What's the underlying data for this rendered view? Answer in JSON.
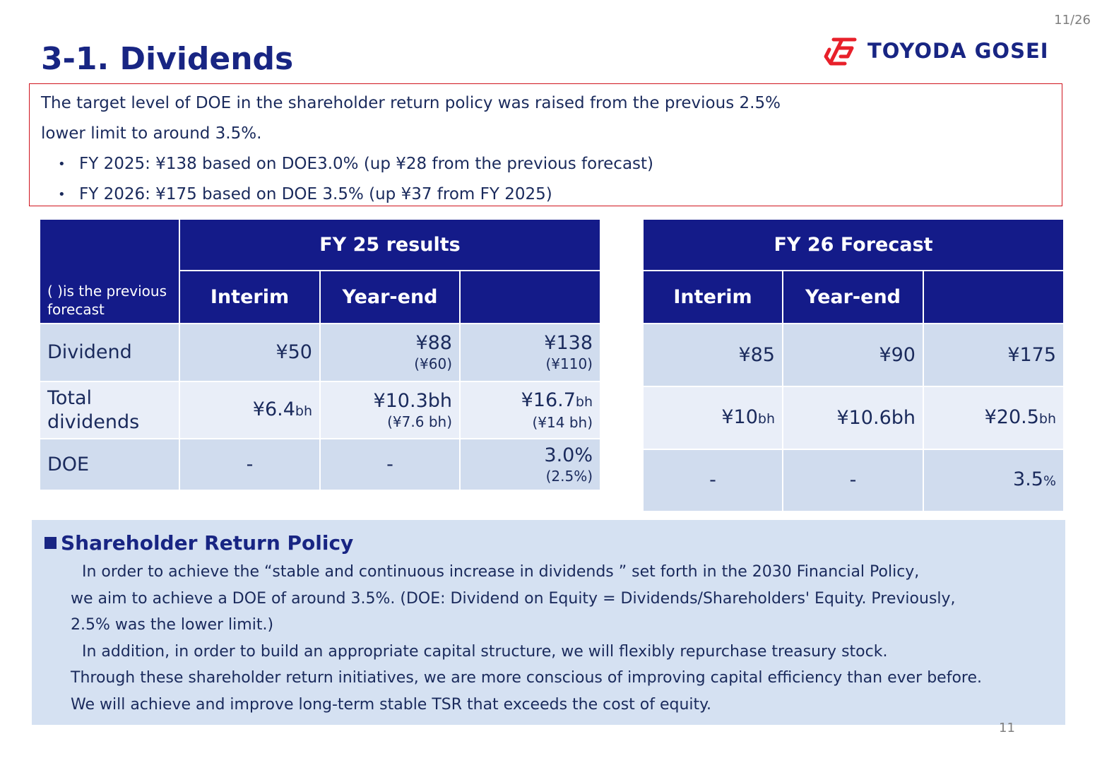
{
  "header": {
    "page_indicator": "11/26",
    "title": "3-1. Dividends",
    "logo_text": "TOYODA GOSEI",
    "brand_red": "#e8202a",
    "brand_navy": "#182583"
  },
  "summary": {
    "line1": "The target level of DOE in the shareholder return policy was raised from the previous 2.5%",
    "line2": "lower limit to around 3.5%.",
    "bullets": [
      "FY 2025: ¥138 based on DOE3.0% (up ¥28 from the previous forecast)",
      "FY 2026: ¥175 based on DOE 3.5% (up ¥37 from FY 2025)"
    ]
  },
  "fy25_table": {
    "note": "( )is the previous forecast",
    "group_header": "FY 25 results",
    "col_interim": "Interim",
    "col_yearend": "Year-end",
    "rows": {
      "dividend": {
        "label": "Dividend",
        "interim": "¥50",
        "yearend": "¥88",
        "yearend_prev": "(¥60)",
        "total": "¥138",
        "total_prev": "(¥110)"
      },
      "total_dividends": {
        "label_line1": "Total",
        "label_line2": "dividends",
        "interim_num": "¥6.4",
        "interim_unit": "bh",
        "yearend": "¥10.3bh",
        "yearend_prev": "(¥7.6 bh)",
        "total_num": "¥16.7",
        "total_unit": "bh",
        "total_prev": "(¥14 bh)"
      },
      "doe": {
        "label": "DOE",
        "interim": "-",
        "yearend": "-",
        "total": "3.0%",
        "total_prev": "(2.5%)"
      }
    }
  },
  "fy26_table": {
    "group_header": "FY 26 Forecast",
    "col_interim": "Interim",
    "col_yearend": "Year-end",
    "rows": {
      "dividend": {
        "interim": "¥85",
        "yearend": "¥90",
        "total": "¥175"
      },
      "total_dividends": {
        "interim_num": "¥10",
        "interim_unit": "bh",
        "yearend": "¥10.6bh",
        "total_num": "¥20.5",
        "total_unit": "bh"
      },
      "doe": {
        "interim": "-",
        "yearend": "-",
        "total_num": "3.5",
        "total_unit": "%"
      }
    }
  },
  "policy": {
    "heading": "Shareholder Return Policy",
    "lines": [
      "In order to achieve the “stable and continuous increase in dividends ” set forth in the 2030 Financial Policy,",
      "we aim to achieve a DOE of around 3.5%. (DOE: Dividend on Equity = Dividends/Shareholders' Equity. Previously,",
      "2.5% was the lower limit.)",
      "In addition, in order to build an appropriate capital structure, we will flexibly repurchase treasury stock.",
      "Through these shareholder return initiatives, we are more conscious of improving capital efficiency than ever before.",
      "We will achieve and improve long-term stable TSR that exceeds the cost of equity."
    ]
  },
  "footer": {
    "page_number": "11"
  }
}
